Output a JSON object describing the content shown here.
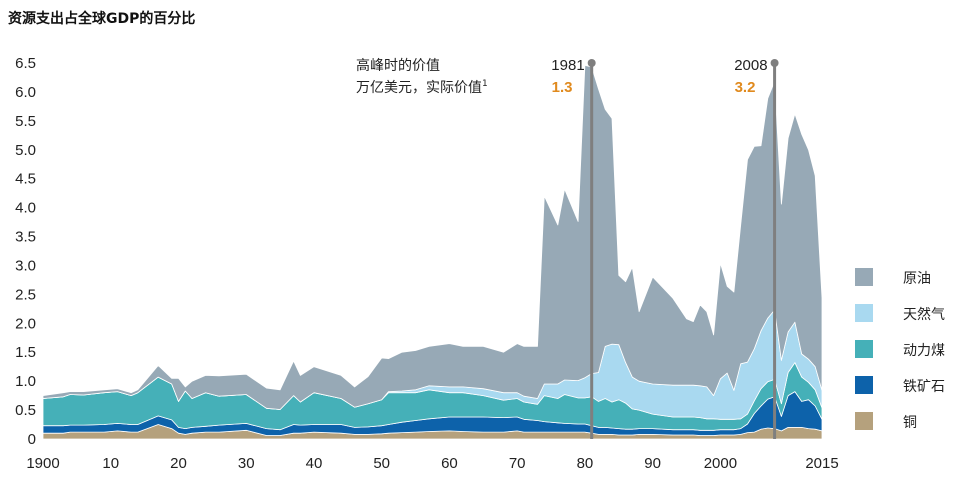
{
  "chart_data": {
    "type": "area",
    "stacked": true,
    "title": "资源支出占全球GDP的百分比",
    "xlabel": "",
    "ylabel": "",
    "xlim": [
      1900,
      2015
    ],
    "ylim": [
      0,
      6.5
    ],
    "y_ticks": [
      0,
      0.5,
      1.0,
      1.5,
      2.0,
      2.5,
      3.0,
      3.5,
      4.0,
      4.5,
      5.0,
      5.5,
      6.0,
      6.5
    ],
    "y_tick_labels": [
      "0",
      "0.5",
      "1.0",
      "1.5",
      "2.0",
      "2.5",
      "3.0",
      "3.5",
      "4.0",
      "4.5",
      "5.0",
      "5.5",
      "6.0",
      "6.5"
    ],
    "x_ticks": [
      1900,
      1910,
      1920,
      1930,
      1940,
      1950,
      1960,
      1970,
      1980,
      1990,
      2000,
      2015
    ],
    "x_tick_labels": [
      "1900",
      "10",
      "20",
      "30",
      "40",
      "50",
      "60",
      "70",
      "80",
      "90",
      "2000",
      "2015"
    ],
    "x_knots": [
      1900,
      1903,
      1904,
      1906,
      1909,
      1911,
      1913,
      1914,
      1917,
      1919,
      1920,
      1921,
      1922,
      1924,
      1926,
      1930,
      1933,
      1935,
      1937,
      1938,
      1940,
      1944,
      1946,
      1948,
      1950,
      1951,
      1953,
      1955,
      1957,
      1960,
      1962,
      1965,
      1968,
      1970,
      1971,
      1973,
      1974,
      1976,
      1977,
      1979,
      1980,
      1981,
      1982,
      1983,
      1984,
      1985,
      1986,
      1987,
      1988,
      1990,
      1993,
      1995,
      1996,
      1997,
      1998,
      1999,
      2000,
      2001,
      2002,
      2003,
      2004,
      2005,
      2006,
      2007,
      2008,
      2009,
      2010,
      2011,
      2012,
      2013,
      2014,
      2015
    ],
    "series": [
      {
        "name": "铜",
        "color": "#b5a17d",
        "values": [
          0.1,
          0.1,
          0.12,
          0.12,
          0.12,
          0.14,
          0.12,
          0.12,
          0.25,
          0.18,
          0.1,
          0.08,
          0.1,
          0.12,
          0.12,
          0.15,
          0.06,
          0.06,
          0.1,
          0.1,
          0.12,
          0.1,
          0.08,
          0.08,
          0.09,
          0.1,
          0.11,
          0.12,
          0.13,
          0.14,
          0.13,
          0.12,
          0.12,
          0.14,
          0.12,
          0.12,
          0.12,
          0.12,
          0.12,
          0.12,
          0.12,
          0.1,
          0.08,
          0.08,
          0.08,
          0.07,
          0.07,
          0.07,
          0.08,
          0.08,
          0.07,
          0.07,
          0.07,
          0.06,
          0.06,
          0.06,
          0.07,
          0.07,
          0.07,
          0.08,
          0.11,
          0.12,
          0.17,
          0.19,
          0.18,
          0.14,
          0.2,
          0.2,
          0.2,
          0.18,
          0.17,
          0.14
        ]
      },
      {
        "name": "铁矿石",
        "color": "#0d62aa",
        "values": [
          0.13,
          0.13,
          0.12,
          0.12,
          0.13,
          0.13,
          0.13,
          0.13,
          0.15,
          0.15,
          0.1,
          0.1,
          0.1,
          0.1,
          0.12,
          0.12,
          0.12,
          0.1,
          0.15,
          0.14,
          0.13,
          0.15,
          0.12,
          0.13,
          0.14,
          0.15,
          0.18,
          0.2,
          0.22,
          0.24,
          0.25,
          0.26,
          0.25,
          0.24,
          0.22,
          0.2,
          0.18,
          0.16,
          0.15,
          0.14,
          0.14,
          0.13,
          0.12,
          0.12,
          0.11,
          0.11,
          0.1,
          0.1,
          0.1,
          0.1,
          0.09,
          0.09,
          0.09,
          0.09,
          0.09,
          0.09,
          0.09,
          0.09,
          0.09,
          0.1,
          0.15,
          0.32,
          0.4,
          0.5,
          0.55,
          0.25,
          0.55,
          0.62,
          0.45,
          0.5,
          0.4,
          0.2
        ]
      },
      {
        "name": "动力煤",
        "color": "#45b0b8",
        "values": [
          0.47,
          0.5,
          0.53,
          0.52,
          0.55,
          0.55,
          0.5,
          0.55,
          0.67,
          0.62,
          0.45,
          0.65,
          0.5,
          0.58,
          0.5,
          0.5,
          0.35,
          0.35,
          0.5,
          0.4,
          0.55,
          0.45,
          0.35,
          0.4,
          0.45,
          0.55,
          0.51,
          0.48,
          0.5,
          0.42,
          0.42,
          0.37,
          0.3,
          0.32,
          0.3,
          0.28,
          0.45,
          0.42,
          0.5,
          0.45,
          0.45,
          0.5,
          0.45,
          0.5,
          0.45,
          0.5,
          0.45,
          0.35,
          0.32,
          0.25,
          0.22,
          0.22,
          0.22,
          0.22,
          0.2,
          0.2,
          0.18,
          0.18,
          0.18,
          0.17,
          0.17,
          0.22,
          0.3,
          0.3,
          0.3,
          0.22,
          0.4,
          0.5,
          0.42,
          0.3,
          0.28,
          0.2
        ]
      },
      {
        "name": "天然气",
        "color": "#a9d9f0",
        "values": [
          0.0,
          0.0,
          0.0,
          0.0,
          0.0,
          0.0,
          0.0,
          0.0,
          0.0,
          0.0,
          0.0,
          0.0,
          0.0,
          0.0,
          0.0,
          0.0,
          0.0,
          0.0,
          0.0,
          0.0,
          0.0,
          0.0,
          0.0,
          0.0,
          0.0,
          0.02,
          0.03,
          0.05,
          0.07,
          0.1,
          0.1,
          0.12,
          0.13,
          0.1,
          0.1,
          0.1,
          0.2,
          0.25,
          0.25,
          0.3,
          0.35,
          0.4,
          0.5,
          0.9,
          1.0,
          0.95,
          0.7,
          0.55,
          0.5,
          0.52,
          0.55,
          0.55,
          0.55,
          0.55,
          0.55,
          0.4,
          0.7,
          0.8,
          0.5,
          0.95,
          0.9,
          0.9,
          1.0,
          1.1,
          1.2,
          0.75,
          0.7,
          0.7,
          0.4,
          0.4,
          0.4,
          0.3
        ]
      },
      {
        "name": "原油",
        "color": "#97a9b6",
        "values": [
          0.05,
          0.07,
          0.05,
          0.06,
          0.05,
          0.05,
          0.05,
          0.05,
          0.2,
          0.1,
          0.4,
          0.07,
          0.3,
          0.3,
          0.35,
          0.35,
          0.35,
          0.34,
          0.6,
          0.46,
          0.45,
          0.4,
          0.35,
          0.47,
          0.72,
          0.57,
          0.67,
          0.68,
          0.68,
          0.75,
          0.7,
          0.73,
          0.7,
          0.85,
          0.86,
          0.9,
          3.25,
          2.75,
          3.3,
          2.75,
          5.4,
          5.3,
          4.9,
          4.1,
          3.9,
          1.2,
          1.4,
          1.9,
          1.2,
          1.85,
          1.5,
          1.15,
          1.1,
          1.4,
          1.3,
          1.05,
          2.0,
          1.5,
          1.7,
          2.4,
          3.5,
          3.5,
          3.2,
          3.8,
          3.95,
          2.7,
          3.35,
          3.6,
          3.8,
          3.62,
          3.3,
          1.6
        ]
      }
    ],
    "annotations": {
      "label_line1": "高峰时的价值",
      "label_line2": "万亿美元，实际价值",
      "label_superscript": "1",
      "peaks": [
        {
          "year": 1981,
          "year_label": "1981",
          "value_label": "1.3"
        },
        {
          "year": 2008,
          "year_label": "2008",
          "value_label": "3.2"
        }
      ]
    },
    "legend_order": [
      "原油",
      "天然气",
      "动力煤",
      "铁矿石",
      "铜"
    ],
    "legend_placement": "right",
    "marker_color": "#7f7f7f",
    "annotation_value_color": "#e08a1e"
  }
}
